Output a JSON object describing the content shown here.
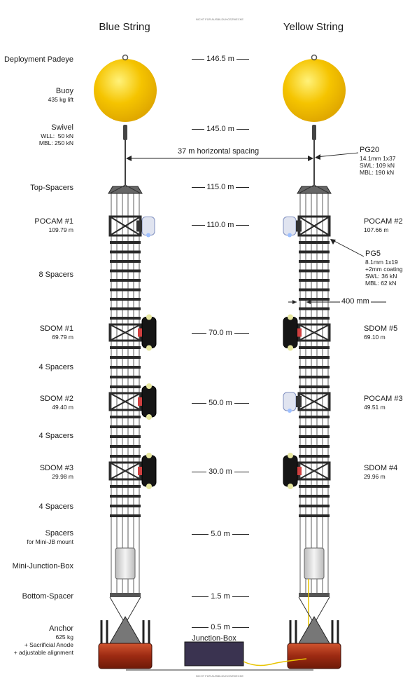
{
  "watermark": "NICHT FÜR AUSBILDUNGSZWECKE",
  "strings": [
    {
      "name": "Blue String"
    },
    {
      "name": "Yellow String"
    }
  ],
  "left_labels": [
    {
      "title": "Deployment Padeye",
      "sub": ""
    },
    {
      "title": "Buoy",
      "sub": "435 kg lift"
    },
    {
      "title": "Swivel",
      "sub": "WLL:  50 kN\nMBL: 250 kN"
    },
    {
      "title": "Top-Spacers",
      "sub": ""
    },
    {
      "title": "POCAM #1",
      "sub": "109.79 m"
    },
    {
      "title": "8 Spacers",
      "sub": ""
    },
    {
      "title": "SDOM #1",
      "sub": "69.79 m"
    },
    {
      "title": "4 Spacers",
      "sub": ""
    },
    {
      "title": "SDOM #2",
      "sub": "49.40 m"
    },
    {
      "title": "4 Spacers",
      "sub": ""
    },
    {
      "title": "SDOM #3",
      "sub": "29.98 m"
    },
    {
      "title": "4 Spacers",
      "sub": ""
    },
    {
      "title": "Spacers",
      "sub": "for Mini-JB mount"
    },
    {
      "title": "Mini-Junction-Box",
      "sub": ""
    },
    {
      "title": "Bottom-Spacer",
      "sub": ""
    },
    {
      "title": "Anchor",
      "sub": "625 kg\n+ Sacrificial Anode\n+ adjustable alignment"
    }
  ],
  "right_labels": [
    {
      "title": "POCAM #2",
      "sub": "107.66 m"
    },
    {
      "title": "SDOM #5",
      "sub": "69.10 m"
    },
    {
      "title": "POCAM #3",
      "sub": "49.51 m"
    },
    {
      "title": "SDOM #4",
      "sub": "29.96 m"
    }
  ],
  "depths": [
    "146.5 m",
    "145.0 m",
    "115.0 m",
    "110.0 m",
    "70.0 m",
    "50.0 m",
    "30.0 m",
    "5.0 m",
    "1.5 m",
    "0.5 m"
  ],
  "spacing_label": "37 m horizontal spacing",
  "pg20": {
    "title": "PG20",
    "lines": "14.1mm 1x37\nSWL: 109 kN\nMBL: 190 kN"
  },
  "pg5": {
    "title": "PG5",
    "lines": "8.1mm 1x19\n+2mm coating\nSWL: 36 kN\nMBL: 62 kN"
  },
  "gap_label": "400 mm",
  "junction_box": "Junction-Box",
  "colors": {
    "buoy": "#f5c400",
    "buoy_light": "#fff27a",
    "frame": "#2a2a2a",
    "anchor": "#b5321a",
    "junction": "#3a3350",
    "cable": "#e8c400"
  }
}
